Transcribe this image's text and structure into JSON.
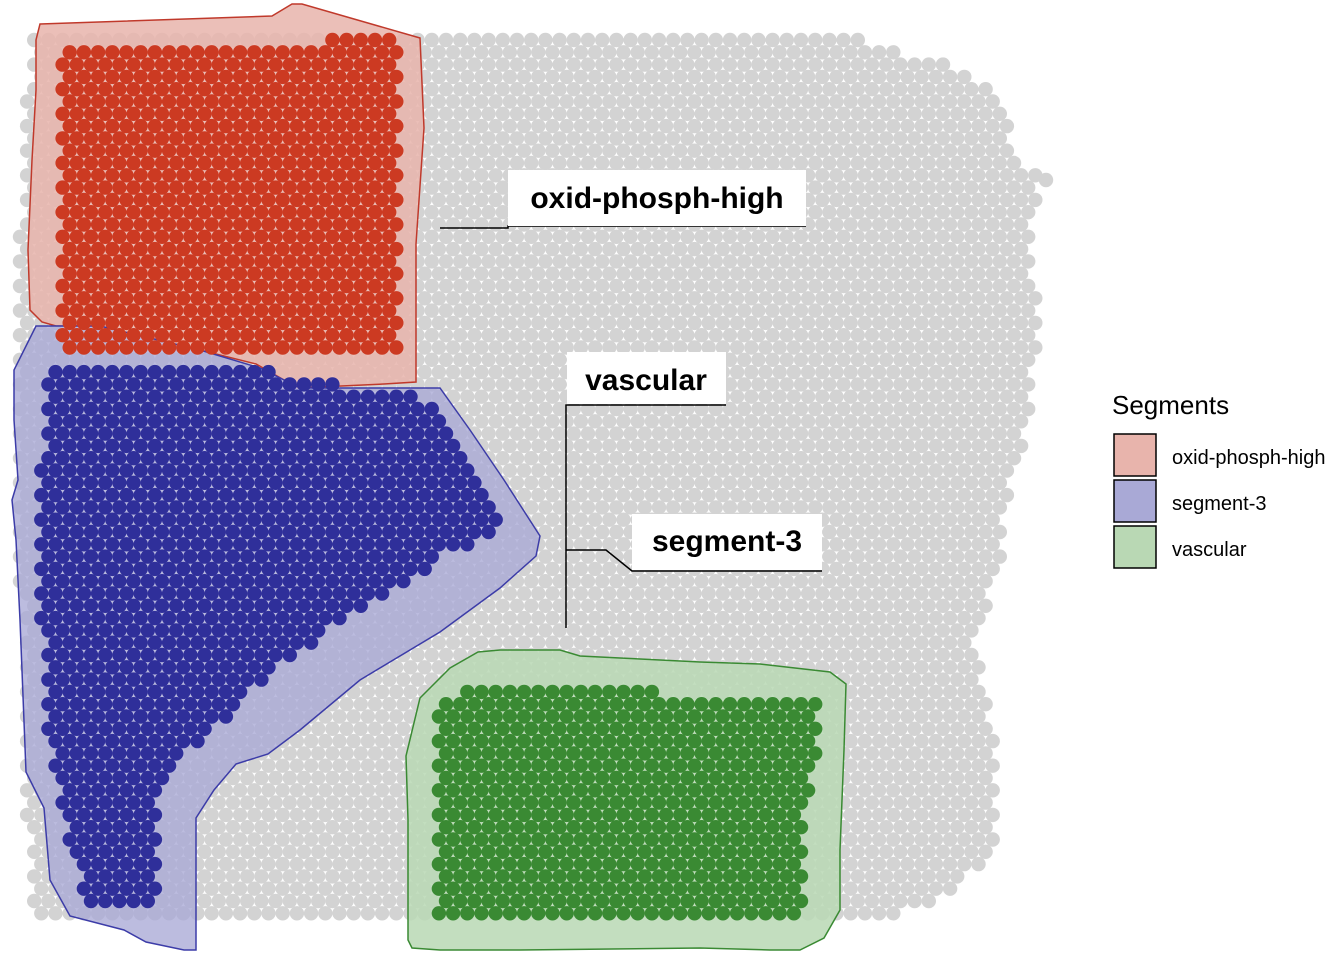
{
  "chart_data": {
    "type": "scatter",
    "background_spot_color": "#d3d3d3",
    "segments": [
      {
        "name": "oxid-phosph-high",
        "spot_color": "#cc3a22",
        "fill": "#e8b4ac",
        "stroke": "#c0392b"
      },
      {
        "name": "segment-3",
        "spot_color": "#2f2f9a",
        "fill": "#a9a9d6",
        "stroke": "#3c3ca8"
      },
      {
        "name": "vascular",
        "spot_color": "#3a8a33",
        "fill": "#b9d8b4",
        "stroke": "#3a8a33"
      }
    ],
    "labels": [
      "oxid-phosph-high",
      "vascular",
      "segment-3"
    ],
    "legend": {
      "title": "Segments",
      "position": "right",
      "items": [
        "oxid-phosph-high",
        "segment-3",
        "vascular"
      ]
    }
  }
}
